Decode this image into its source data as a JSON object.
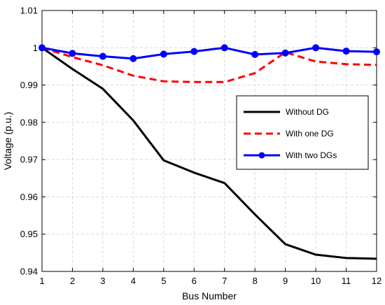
{
  "chart_data": {
    "type": "line",
    "title": "",
    "xlabel": "Bus Number",
    "ylabel": "Voltage (p.u.)",
    "xlim": [
      1,
      12
    ],
    "ylim": [
      0.94,
      1.01
    ],
    "x": [
      1,
      2,
      3,
      4,
      5,
      6,
      7,
      8,
      9,
      10,
      11,
      12
    ],
    "xticks": [
      "1",
      "2",
      "3",
      "4",
      "5",
      "6",
      "7",
      "8",
      "9",
      "10",
      "11",
      "12"
    ],
    "yticks": [
      "0.94",
      "0.95",
      "0.96",
      "0.97",
      "0.98",
      "0.99",
      "1",
      "1.01"
    ],
    "grid": true,
    "legend_position": "right",
    "series": [
      {
        "name": "Without DG",
        "color": "#000000",
        "style": "solid",
        "marker": "none",
        "values": [
          1.0,
          0.9943,
          0.989,
          0.9805,
          0.9698,
          0.9665,
          0.9637,
          0.9553,
          0.9473,
          0.9445,
          0.9436,
          0.9434
        ]
      },
      {
        "name": "With one DG",
        "color": "#ff0000",
        "style": "dashed",
        "marker": "none",
        "values": [
          1.0,
          0.9975,
          0.9953,
          0.9925,
          0.991,
          0.9908,
          0.9908,
          0.9932,
          0.9988,
          0.9963,
          0.9956,
          0.9954
        ]
      },
      {
        "name": "With two DGs",
        "color": "#0000ff",
        "style": "solid",
        "marker": "circle",
        "values": [
          1.0,
          0.9985,
          0.9977,
          0.9971,
          0.9983,
          0.999,
          1.0,
          0.9982,
          0.9986,
          1.0,
          0.9991,
          0.9989
        ]
      }
    ]
  }
}
